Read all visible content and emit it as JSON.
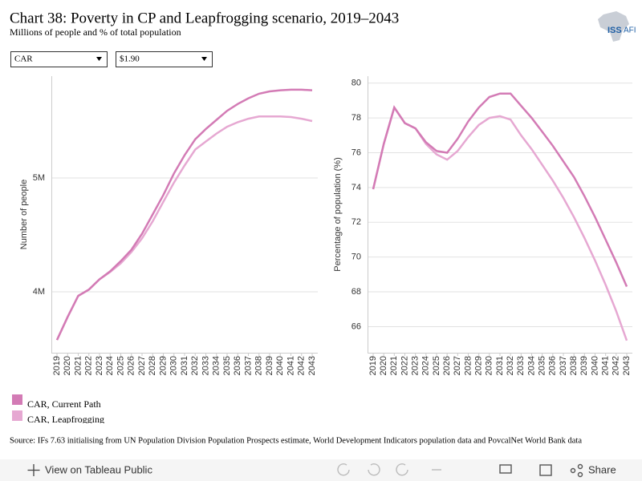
{
  "header": {
    "title": "Chart 38: Poverty in CP and Leapfrogging scenario, 2019–2043",
    "subtitle": "Millions of people and % of total population",
    "logo": "ISS",
    "logo_suffix": "AFI"
  },
  "filters": {
    "country": "CAR",
    "poverty_line": "$1.90"
  },
  "chart_data": [
    {
      "type": "line",
      "y_label": "Number of people",
      "categories": [
        "2019",
        "2020",
        "2021",
        "2022",
        "2023",
        "2024",
        "2025",
        "2026",
        "2027",
        "2028",
        "2029",
        "2030",
        "2031",
        "2032",
        "2033",
        "2034",
        "2035",
        "2036",
        "2037",
        "2038",
        "2039",
        "2040",
        "2041",
        "2042",
        "2043"
      ],
      "series": [
        {
          "name": "CAR, Current Path",
          "color": "#d37bb5",
          "values": [
            3577000,
            3780000,
            3965000,
            4020000,
            4110000,
            4180000,
            4270000,
            4370000,
            4510000,
            4680000,
            4850000,
            5040000,
            5200000,
            5340000,
            5430000,
            5510000,
            5590000,
            5650000,
            5700000,
            5740000,
            5760000,
            5770000,
            5775000,
            5775000,
            5770000
          ]
        },
        {
          "name": "CAR, Leapfrogging",
          "color": "#e6a8d2",
          "values": [
            3577000,
            3780000,
            3965000,
            4020000,
            4110000,
            4175000,
            4250000,
            4350000,
            4470000,
            4620000,
            4790000,
            4960000,
            5110000,
            5250000,
            5320000,
            5390000,
            5450000,
            5490000,
            5520000,
            5540000,
            5540000,
            5540000,
            5535000,
            5520000,
            5500000
          ]
        }
      ],
      "ylim": [
        3465000,
        5894000
      ],
      "yticks": [
        {
          "value": 4000000,
          "label": "4M"
        },
        {
          "value": 5000000,
          "label": "5M"
        }
      ],
      "grid": true
    },
    {
      "type": "line",
      "y_label": "Percentage of population (%)",
      "categories": [
        "2019",
        "2020",
        "2021",
        "2022",
        "2023",
        "2024",
        "2025",
        "2026",
        "2027",
        "2028",
        "2029",
        "2030",
        "2031",
        "2032",
        "2033",
        "2034",
        "2035",
        "2036",
        "2037",
        "2038",
        "2039",
        "2040",
        "2041",
        "2042",
        "2043"
      ],
      "series": [
        {
          "name": "CAR, Current Path",
          "color": "#d37bb5",
          "values": [
            73.9,
            76.5,
            78.6,
            77.7,
            77.4,
            76.6,
            76.1,
            76.0,
            76.8,
            77.8,
            78.6,
            79.2,
            79.4,
            79.4,
            78.7,
            78.0,
            77.2,
            76.4,
            75.5,
            74.6,
            73.5,
            72.3,
            71.0,
            69.7,
            68.3
          ]
        },
        {
          "name": "CAR, Leapfrogging",
          "color": "#e6a8d2",
          "values": [
            73.9,
            76.5,
            78.6,
            77.7,
            77.4,
            76.5,
            75.9,
            75.6,
            76.1,
            76.9,
            77.6,
            78.0,
            78.1,
            77.9,
            77.0,
            76.2,
            75.3,
            74.4,
            73.4,
            72.3,
            71.1,
            69.8,
            68.4,
            66.9,
            65.2
          ]
        }
      ],
      "ylim": [
        64.5,
        80.4
      ],
      "yticks": [
        66,
        68,
        70,
        72,
        74,
        76,
        78,
        80
      ],
      "grid": true
    }
  ],
  "source": "Source: IFs 7.63 initialising from UN Population Division Population Prospects estimate, World Development Indicators population data and PovcalNet World Bank data",
  "toolbar": {
    "view": "View on Tableau Public",
    "share": "Share"
  }
}
